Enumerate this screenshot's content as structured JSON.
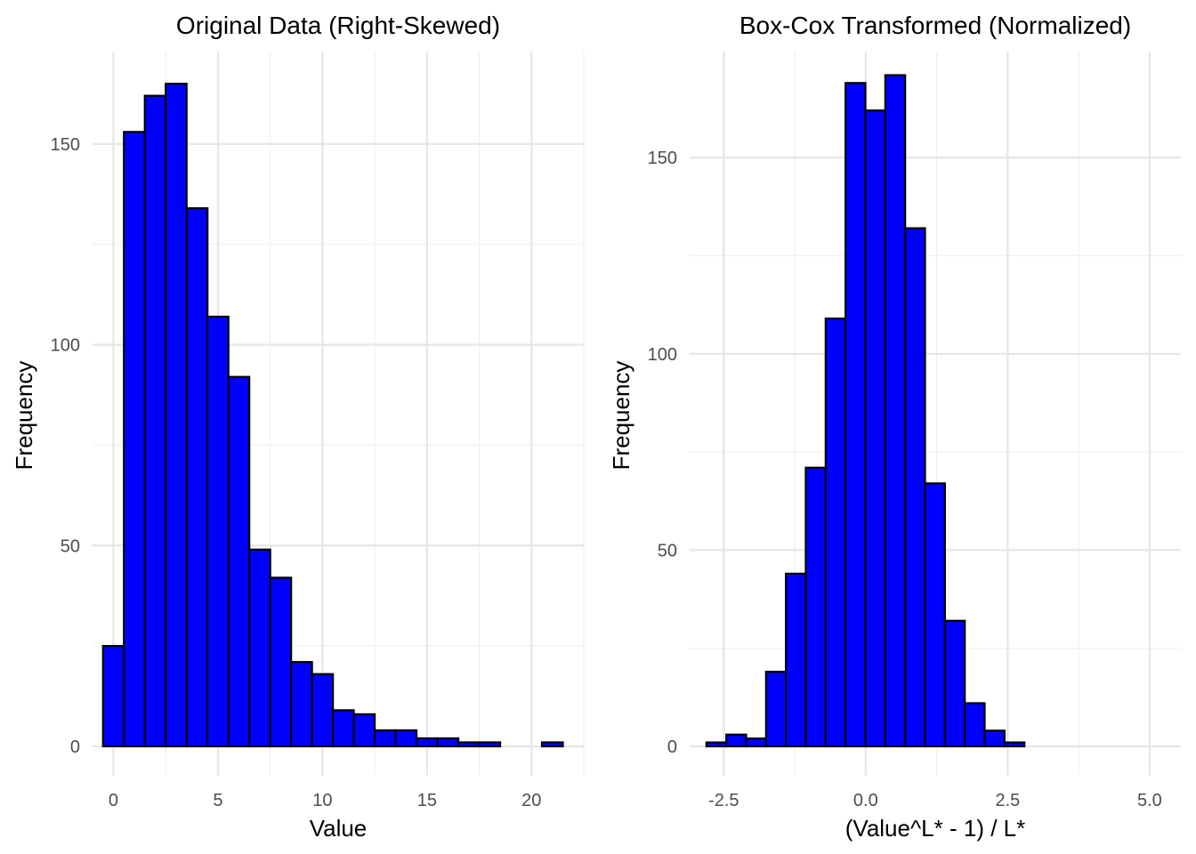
{
  "chart_data": [
    {
      "type": "bar",
      "title": "Original Data (Right-Skewed)",
      "xlabel": "Value",
      "ylabel": "Frequency",
      "bar_color": "#0000ff",
      "edge_color": "#000000",
      "grid": true,
      "xlim": [
        -1,
        22.5
      ],
      "ylim": [
        0,
        173
      ],
      "x_ticks": [
        0,
        5,
        10,
        15,
        20
      ],
      "x_tick_labels": [
        "0",
        "5",
        "10",
        "15",
        "20"
      ],
      "x_minor_ticks": [
        -2.5,
        2.5,
        7.5,
        12.5,
        17.5,
        22.5
      ],
      "y_ticks": [
        0,
        50,
        100,
        150
      ],
      "y_tick_labels": [
        "0",
        "50",
        "100",
        "150"
      ],
      "y_minor_ticks": [
        25,
        75,
        125
      ],
      "bin_width": 1,
      "bin_centers": [
        0,
        1,
        2,
        3,
        4,
        5,
        6,
        7,
        8,
        9,
        10,
        11,
        12,
        13,
        14,
        15,
        16,
        17,
        18,
        19,
        20,
        21
      ],
      "values": [
        25,
        153,
        162,
        165,
        134,
        107,
        92,
        49,
        42,
        21,
        18,
        9,
        8,
        4,
        4,
        2,
        2,
        1,
        1,
        0,
        0,
        1
      ]
    },
    {
      "type": "bar",
      "title": "Box-Cox Transformed (Normalized)",
      "xlabel": "(Value^L* - 1) / L*",
      "ylabel": "Frequency",
      "bar_color": "#0000ff",
      "edge_color": "#000000",
      "grid": true,
      "xlim": [
        -3.1,
        5.55
      ],
      "ylim": [
        0,
        177
      ],
      "x_ticks": [
        -2.5,
        0.0,
        2.5,
        5.0
      ],
      "x_tick_labels": [
        "-2.5",
        "0.0",
        "2.5",
        "5.0"
      ],
      "x_minor_ticks": [
        -3.75,
        -1.25,
        1.25,
        3.75
      ],
      "y_ticks": [
        0,
        50,
        100,
        150
      ],
      "y_tick_labels": [
        "0",
        "50",
        "100",
        "150"
      ],
      "y_minor_ticks": [
        25,
        75,
        125
      ],
      "bin_width": 0.35,
      "bin_centers": [
        -2.63,
        -2.28,
        -1.93,
        -1.58,
        -1.23,
        -0.88,
        -0.53,
        -0.18,
        0.17,
        0.52,
        0.87,
        1.22,
        1.57,
        1.92,
        2.27,
        2.62,
        2.97,
        3.32,
        3.67,
        4.02,
        4.37
      ],
      "values": [
        1,
        3,
        2,
        19,
        44,
        71,
        109,
        169,
        162,
        171,
        132,
        67,
        32,
        11,
        4,
        1,
        0,
        0,
        0,
        0,
        0
      ]
    }
  ]
}
